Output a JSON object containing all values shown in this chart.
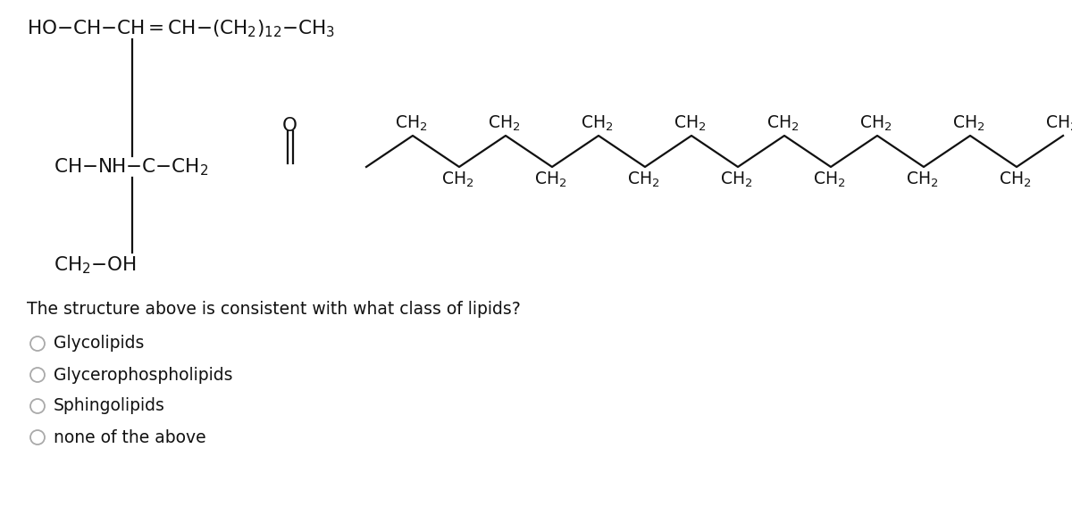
{
  "background_color": "#ffffff",
  "figsize": [
    12.0,
    5.77
  ],
  "dpi": 100,
  "question": "The structure above is consistent with what class of lipids?",
  "options": [
    "Glycolipids",
    "Glycerophospholipids",
    "Sphingolipids",
    "none of the above"
  ],
  "text_color": "#111111",
  "radio_color": "#aaaaaa",
  "line_color": "#111111",
  "fs_struct": 14.5,
  "fs_question": 13.5,
  "fs_options": 13.5
}
